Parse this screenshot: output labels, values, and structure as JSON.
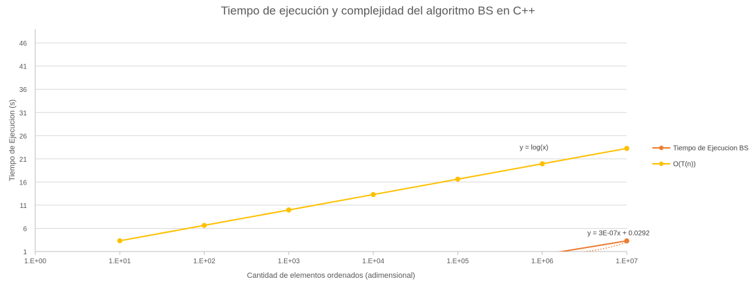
{
  "chart_data": {
    "type": "line",
    "title": "Tiempo de ejecución y complejidad del algoritmo BS en C++",
    "xlabel": "Cantidad de elementos ordenados (adimensional)",
    "ylabel": "Tiempo de Ejecucion (s)",
    "x_scale": "log",
    "xlim": [
      1,
      10000000
    ],
    "ylim": [
      1,
      49
    ],
    "x_tick_labels": [
      "1.E+00",
      "1.E+01",
      "1.E+02",
      "1.E+03",
      "1.E+04",
      "1.E+05",
      "1.E+06",
      "1.E+07"
    ],
    "y_tick_labels": [
      "1",
      "6",
      "11",
      "16",
      "21",
      "26",
      "31",
      "36",
      "41",
      "46"
    ],
    "grid": "horizontal",
    "legend_position": "right",
    "series": [
      {
        "name": "Tiempo de Ejecucion BS",
        "color": "#ED7D31",
        "x": [
          10,
          100,
          1000,
          10000,
          100000,
          1000000,
          10000000
        ],
        "y": [
          0.03,
          0.03,
          0.03,
          0.05,
          0.06,
          0.3,
          3.3
        ]
      },
      {
        "name": "O(T(n))",
        "color": "#FFC000",
        "x": [
          10,
          100,
          1000,
          10000,
          100000,
          1000000,
          10000000
        ],
        "y": [
          3.32,
          6.64,
          9.97,
          13.29,
          16.61,
          19.93,
          23.25
        ]
      }
    ],
    "trendline": {
      "of_series": "Tiempo de Ejecucion BS",
      "type": "linear",
      "style": "dotted",
      "color": "#ED7D31",
      "x": [
        10,
        10000000
      ],
      "y": [
        0.0292,
        3.0292
      ]
    },
    "annotations": [
      {
        "text": "y = log(x)",
        "x": 1000000,
        "y": 23
      },
      {
        "text": "y = 3E-07x + 0.0292",
        "x": 10000000,
        "y": 4.5
      }
    ],
    "colors": {
      "grid": "#D9D9D9",
      "axis": "#BFBFBF",
      "text": "#595959"
    }
  }
}
